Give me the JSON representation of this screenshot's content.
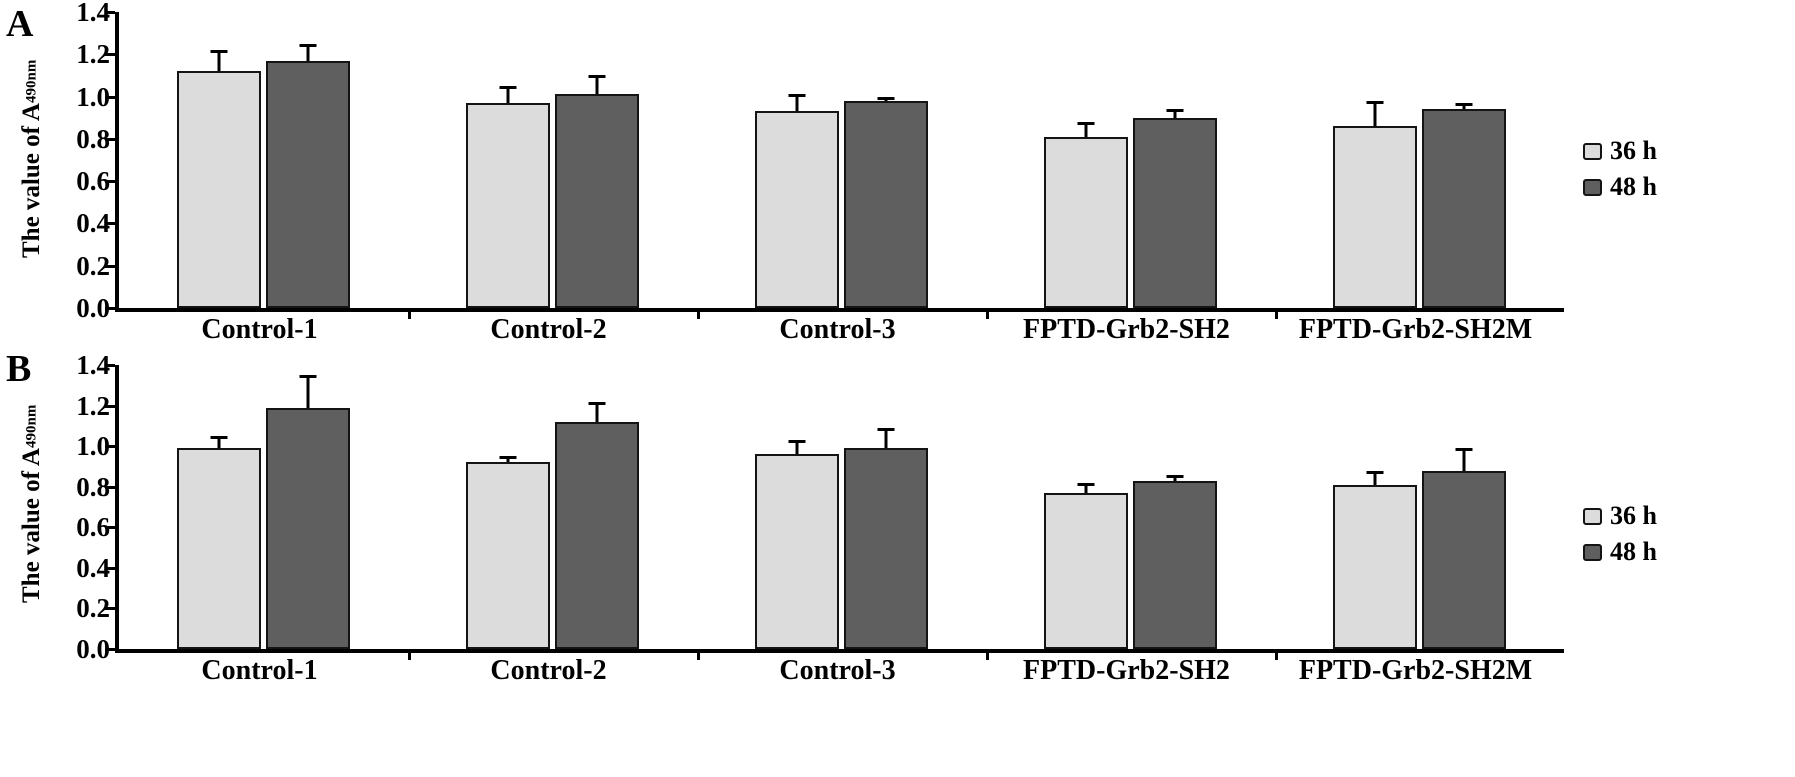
{
  "figure": {
    "description": "Two-panel bar chart figure",
    "panels": [
      "A",
      "B"
    ]
  },
  "chart_data": [
    {
      "type": "bar",
      "panel": "A",
      "title": "",
      "xlabel": "",
      "ylabel": "The value of A",
      "ylabel_sub": "490nm",
      "ylim": [
        0,
        1.4
      ],
      "yticks": [
        0.0,
        0.2,
        0.4,
        0.6,
        0.8,
        1.0,
        1.2,
        1.4
      ],
      "grid": false,
      "legend_position": "right",
      "categories": [
        "Control-1",
        "Control-2",
        "Control-3",
        "FPTD-Grb2-SH2",
        "FPTD-Grb2-SH2M"
      ],
      "series": [
        {
          "name": "36 h",
          "color": "#dcdcdc",
          "values": [
            1.12,
            0.97,
            0.93,
            0.81,
            0.86
          ],
          "errors": [
            0.1,
            0.08,
            0.08,
            0.07,
            0.12
          ]
        },
        {
          "name": "48 h",
          "color": "#5f5f5f",
          "values": [
            1.17,
            1.01,
            0.98,
            0.9,
            0.94
          ],
          "errors": [
            0.08,
            0.09,
            0.02,
            0.04,
            0.03
          ]
        }
      ]
    },
    {
      "type": "bar",
      "panel": "B",
      "title": "",
      "xlabel": "",
      "ylabel": "The value of A",
      "ylabel_sub": "490nm",
      "ylim": [
        0,
        1.4
      ],
      "yticks": [
        0.0,
        0.2,
        0.4,
        0.6,
        0.8,
        1.0,
        1.2,
        1.4
      ],
      "grid": false,
      "legend_position": "right",
      "categories": [
        "Control-1",
        "Control-2",
        "Control-3",
        "FPTD-Grb2-SH2",
        "FPTD-Grb2-SH2M"
      ],
      "series": [
        {
          "name": "36 h",
          "color": "#dcdcdc",
          "values": [
            0.99,
            0.92,
            0.96,
            0.77,
            0.81
          ],
          "errors": [
            0.06,
            0.03,
            0.07,
            0.05,
            0.07
          ]
        },
        {
          "name": "48 h",
          "color": "#5f5f5f",
          "values": [
            1.19,
            1.12,
            0.99,
            0.83,
            0.88
          ],
          "errors": [
            0.16,
            0.1,
            0.1,
            0.03,
            0.11
          ]
        }
      ]
    }
  ]
}
